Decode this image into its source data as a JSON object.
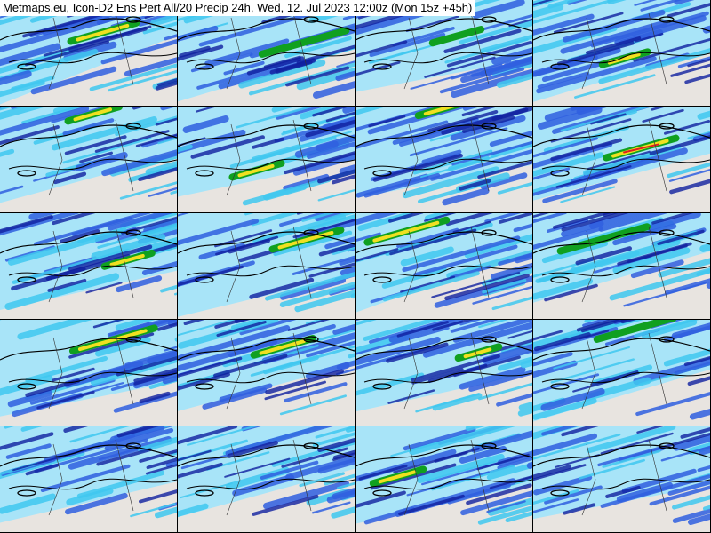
{
  "title": "Metmaps.eu, Icon-D2 Ens Pert All/20 Precip 24h, Wed, 12. Jul 2023 12:00z (Mon 15z +45h)",
  "grid": {
    "rows": 5,
    "columns": 4,
    "members": 20
  },
  "colors": {
    "no_precip": "#e8e4e0",
    "light": "#a8e4f8",
    "cyan": "#40c8f0",
    "blue": "#3060e0",
    "dark_blue": "#1020a0",
    "green": "#10a020",
    "yellow": "#f0e020",
    "orange": "#f09020",
    "red": "#e02020",
    "borders": "#000000"
  }
}
